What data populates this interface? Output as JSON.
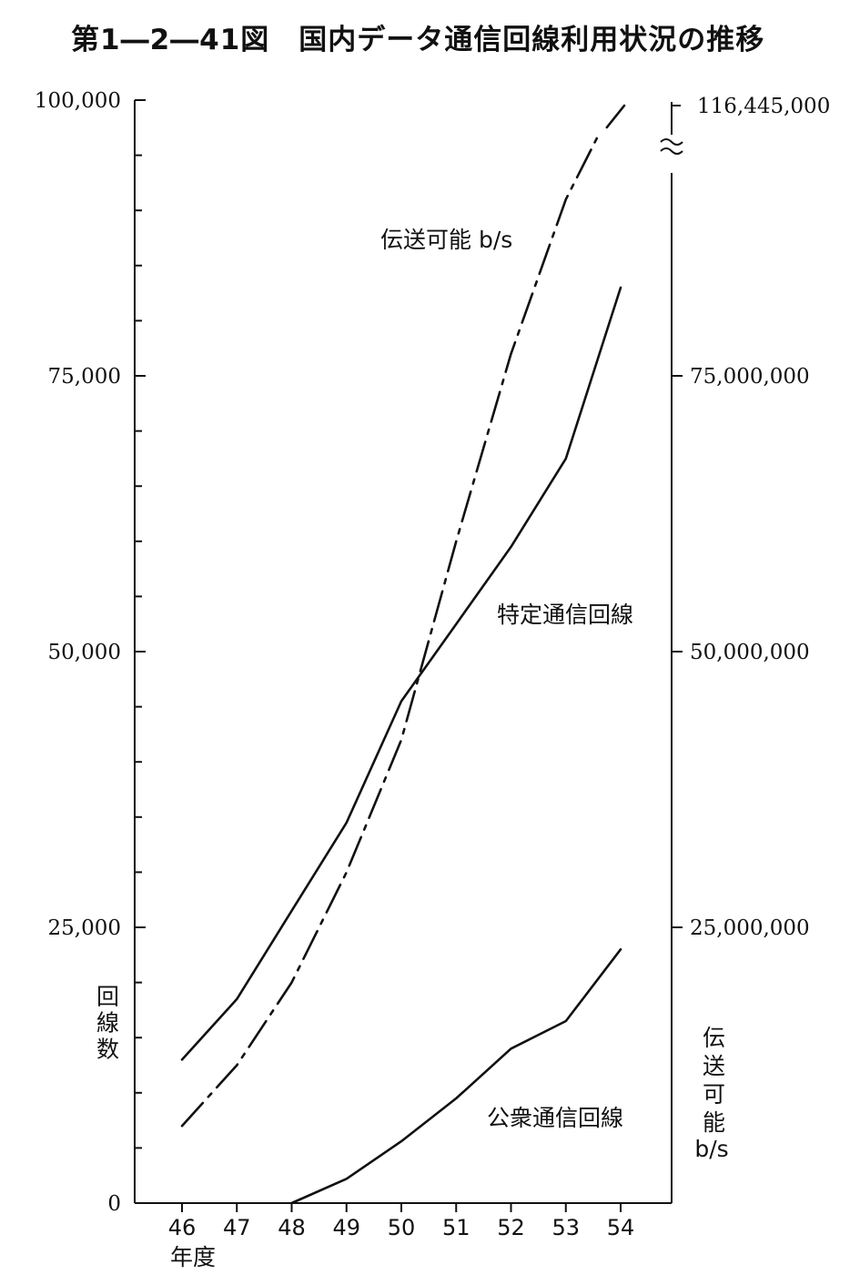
{
  "title": "第1―2―41図　国内データ通信回線利用状況の推移",
  "chart_data": {
    "type": "line",
    "title": "第1―2―41図　国内データ通信回線利用状況の推移",
    "xlabel": "年度",
    "ylabel": "回線数",
    "y2label": "伝送可能b/s",
    "categories": [
      "46",
      "47",
      "48",
      "49",
      "50",
      "51",
      "52",
      "53",
      "54"
    ],
    "ylim": [
      0,
      100000
    ],
    "y2lim": [
      0,
      100000000
    ],
    "y_ticks": [
      "0",
      "25,000",
      "50,000",
      "75,000",
      "100,000"
    ],
    "y2_ticks": [
      "25,000,000",
      "50,000,000",
      "75,000,000",
      "116,445,000"
    ],
    "series": [
      {
        "name": "特定通信回線",
        "axis": "left",
        "style": "solid",
        "values": [
          13000,
          18500,
          26500,
          34500,
          45500,
          52500,
          59500,
          67500,
          83000
        ]
      },
      {
        "name": "公衆通信回線",
        "axis": "left",
        "style": "solid",
        "values": [
          null,
          null,
          0,
          2200,
          5600,
          9500,
          14000,
          16500,
          23000
        ]
      },
      {
        "name": "伝送可能 b/s",
        "axis": "right",
        "style": "dash-dot",
        "values": [
          7000000,
          12500000,
          20000000,
          30000000,
          42000000,
          60000000,
          77000000,
          91000000,
          116445000
        ]
      }
    ],
    "legend": "inline labels near lines",
    "grid": false,
    "axis_break": "right axis above 95,000,000"
  }
}
